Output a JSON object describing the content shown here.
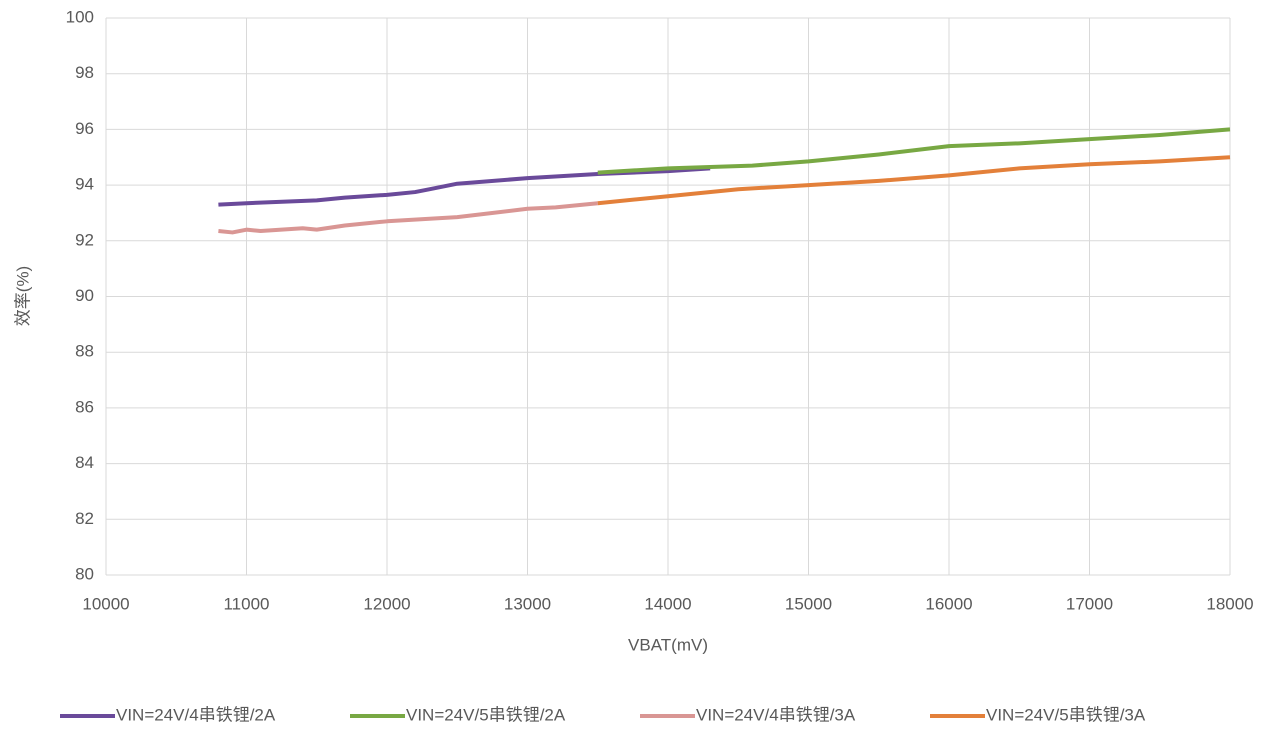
{
  "chart_data": {
    "type": "line",
    "x_label": "VBAT(mV)",
    "y_label": "效率(%)",
    "xlim": [
      10000,
      18000
    ],
    "xticks": [
      10000,
      11000,
      12000,
      13000,
      14000,
      15000,
      16000,
      17000,
      18000
    ],
    "ylim": [
      80,
      100
    ],
    "yticks": [
      80,
      82,
      84,
      86,
      88,
      90,
      92,
      94,
      96,
      98,
      100
    ],
    "grid": true,
    "legend": "bottom",
    "series": [
      {
        "name": "VIN=24V/4串铁锂/2A",
        "color": "#6a4a9a",
        "x": [
          10800,
          11000,
          11500,
          11700,
          12000,
          12200,
          12300,
          12500,
          13000,
          13500,
          14000,
          14300
        ],
        "values": [
          93.3,
          93.35,
          93.45,
          93.55,
          93.65,
          93.75,
          93.85,
          94.05,
          94.25,
          94.4,
          94.5,
          94.6
        ]
      },
      {
        "name": "VIN=24V/5串铁锂/2A",
        "color": "#78a843",
        "x": [
          13500,
          14000,
          14600,
          15000,
          15500,
          16000,
          16500,
          17000,
          17500,
          18000
        ],
        "values": [
          94.45,
          94.6,
          94.7,
          94.85,
          95.1,
          95.4,
          95.5,
          95.65,
          95.8,
          96.0
        ]
      },
      {
        "name": "VIN=24V/4串铁锂/3A",
        "color": "#d99694",
        "x": [
          10800,
          10900,
          11000,
          11100,
          11400,
          11500,
          11700,
          12000,
          12500,
          13000,
          13200,
          13500
        ],
        "values": [
          92.35,
          92.3,
          92.4,
          92.35,
          92.45,
          92.4,
          92.55,
          92.7,
          92.85,
          93.15,
          93.2,
          93.35
        ]
      },
      {
        "name": "VIN=24V/5串铁锂/3A",
        "color": "#e3803a",
        "x": [
          13500,
          14000,
          14500,
          15000,
          15500,
          16000,
          16500,
          17000,
          17500,
          18000
        ],
        "values": [
          93.35,
          93.6,
          93.85,
          94.0,
          94.15,
          94.35,
          94.6,
          94.75,
          94.85,
          95.0
        ]
      }
    ]
  }
}
